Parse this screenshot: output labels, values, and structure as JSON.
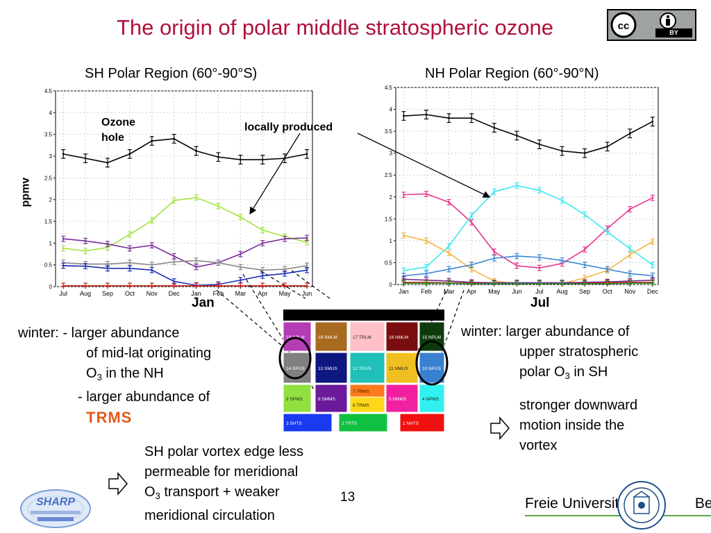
{
  "slide": {
    "title": "The origin of polar middle stratospheric ozone",
    "page_number": "13",
    "cc_badge": {
      "label": "BY"
    }
  },
  "left_panel": {
    "title": "SH Polar Region (60°-90°S)",
    "ylabel": "ppmv",
    "month_highlight": "Jan",
    "annotation_ozone_hole": [
      "Ozone",
      "hole"
    ]
  },
  "right_panel": {
    "title": "NH Polar Region (60°-90°N)",
    "month_highlight": "Jul"
  },
  "shared_annotation": "locally produced",
  "chart_data": [
    {
      "type": "line",
      "title": "SH Polar Region (60°-90°S)",
      "ylabel": "ppmv",
      "ylim": [
        0,
        4.5
      ],
      "yticks": [
        "0",
        "0.5",
        "1",
        "1.5",
        "2",
        "2.5",
        "3",
        "3.5",
        "4",
        "4.5"
      ],
      "grid": true,
      "categories": [
        "Jul",
        "Aug",
        "Sep",
        "Oct",
        "Nov",
        "Dec",
        "Jan",
        "Feb",
        "Mar",
        "Apr",
        "May",
        "Jun"
      ],
      "series": [
        {
          "color": "#000000",
          "values": [
            3.05,
            2.95,
            2.85,
            3.05,
            3.35,
            3.4,
            3.12,
            2.98,
            2.92,
            2.92,
            2.95,
            3.05
          ]
        },
        {
          "color": "#a0e33c",
          "values": [
            0.88,
            0.82,
            0.9,
            1.2,
            1.52,
            1.98,
            2.05,
            1.85,
            1.6,
            1.3,
            1.15,
            1.02
          ]
        },
        {
          "color": "#7b2a9e",
          "values": [
            1.1,
            1.05,
            0.98,
            0.88,
            0.95,
            0.7,
            0.45,
            0.55,
            0.75,
            1.0,
            1.1,
            1.12
          ]
        },
        {
          "color": "#888888",
          "values": [
            0.55,
            0.52,
            0.52,
            0.55,
            0.5,
            0.57,
            0.6,
            0.55,
            0.45,
            0.38,
            0.4,
            0.48
          ]
        },
        {
          "color": "#1a2db8",
          "values": [
            0.48,
            0.47,
            0.42,
            0.42,
            0.38,
            0.12,
            0.03,
            0.05,
            0.15,
            0.25,
            0.3,
            0.38
          ]
        },
        {
          "color": "#d62418",
          "values": [
            0.02,
            0.02,
            0.02,
            0.02,
            0.02,
            0.02,
            0.02,
            0.02,
            0.02,
            0.02,
            0.02,
            0.02
          ]
        }
      ]
    },
    {
      "type": "line",
      "title": "NH Polar Region (60°-90°N)",
      "ylim": [
        0,
        4.5
      ],
      "yticks": [
        "0",
        "0.5",
        "1",
        "1.5",
        "2",
        "2.5",
        "3",
        "3.5",
        "4",
        "4.5"
      ],
      "grid": true,
      "categories": [
        "Jan",
        "Feb",
        "Mar",
        "Apr",
        "May",
        "Jun",
        "Jul",
        "Aug",
        "Sep",
        "Oct",
        "Nov",
        "Dec"
      ],
      "series": [
        {
          "color": "#000000",
          "values": [
            3.85,
            3.88,
            3.8,
            3.8,
            3.58,
            3.4,
            3.2,
            3.05,
            3.0,
            3.15,
            3.45,
            3.72
          ]
        },
        {
          "color": "#e8338c",
          "values": [
            2.05,
            2.07,
            1.88,
            1.42,
            0.75,
            0.43,
            0.38,
            0.48,
            0.8,
            1.28,
            1.72,
            1.98
          ]
        },
        {
          "color": "#3de6ee",
          "values": [
            0.32,
            0.4,
            0.88,
            1.58,
            2.12,
            2.26,
            2.15,
            1.92,
            1.6,
            1.2,
            0.82,
            0.45
          ]
        },
        {
          "color": "#f5b342",
          "values": [
            1.12,
            1.0,
            0.72,
            0.35,
            0.08,
            0.02,
            0.02,
            0.02,
            0.15,
            0.32,
            0.68,
            0.98
          ]
        },
        {
          "color": "#3a86d4",
          "values": [
            0.2,
            0.25,
            0.35,
            0.45,
            0.6,
            0.65,
            0.62,
            0.55,
            0.45,
            0.35,
            0.25,
            0.2
          ]
        },
        {
          "color": "#6a2b8c",
          "values": [
            0.12,
            0.1,
            0.08,
            0.05,
            0.04,
            0.04,
            0.04,
            0.04,
            0.05,
            0.06,
            0.08,
            0.1
          ]
        },
        {
          "color": "#d62418",
          "values": [
            0.05,
            0.05,
            0.04,
            0.03,
            0.02,
            0.02,
            0.02,
            0.02,
            0.03,
            0.04,
            0.05,
            0.05
          ]
        },
        {
          "color": "#2e8b2e",
          "values": [
            0.03,
            0.03,
            0.03,
            0.02,
            0.02,
            0.02,
            0.02,
            0.02,
            0.02,
            0.02,
            0.03,
            0.03
          ]
        }
      ]
    }
  ],
  "region_map": {
    "regions": [
      {
        "label": "19 SPLM",
        "color": "#b43cb4"
      },
      {
        "label": "18 SMLM",
        "color": "#a86a1e"
      },
      {
        "label": "17 TRLM",
        "color": "#ffc0c8"
      },
      {
        "label": "16 NMLM",
        "color": "#7a0e0e"
      },
      {
        "label": "15 NPLM",
        "color": "#0e3b0e"
      },
      {
        "label": "14 SPUS",
        "color": "#808080"
      },
      {
        "label": "13 SMUS",
        "color": "#0e1680"
      },
      {
        "label": "12 TRUS",
        "color": "#20c0b8"
      },
      {
        "label": "11 NMUS",
        "color": "#f0c020"
      },
      {
        "label": "10 NPUS",
        "color": "#3a80d0"
      },
      {
        "label": "9 SPMS",
        "color": "#90e040"
      },
      {
        "label": "8 SMMS",
        "color": "#6a1a9a"
      },
      {
        "label": "7 TRMS",
        "color": "#ff7a1a"
      },
      {
        "label": "6 TRMS",
        "color": "#ffd81a"
      },
      {
        "label": "5 NMMS",
        "color": "#f020a0"
      },
      {
        "label": "4 NPMS",
        "color": "#30f0f0"
      },
      {
        "label": "3 SHTS",
        "color": "#1a3af0"
      },
      {
        "label": "2 TRTS",
        "color": "#10c040"
      },
      {
        "label": "1 NHTS",
        "color": "#f01010"
      }
    ]
  },
  "left_text": {
    "line1": "winter: - larger abundance",
    "line2": "of mid-lat originating",
    "line3a": "O",
    "line3sub": "3",
    "line3b": " in the NH",
    "line4": "- larger abundance of",
    "line5": "TRMS"
  },
  "right_text": {
    "line1": "winter: larger abundance of",
    "line2": "upper stratospheric",
    "line3a": "polar O",
    "line3sub": "3",
    "line3b": " in SH",
    "line4": "stronger downward",
    "line5": "motion inside the",
    "line6": "vortex"
  },
  "bottom_text": {
    "line1": "SH polar vortex edge less",
    "line2": "permeable for meridional",
    "line3a": "O",
    "line3sub": "3",
    "line3b": " transport + weaker",
    "line4": "meridional circulation"
  },
  "logos": {
    "sharp": "SHARP",
    "freie_universitat": "Freie Universität",
    "berlin": "Berlin"
  },
  "colors": {
    "title": "#b0103a",
    "trms": "#e25a1b",
    "fu_line": "#5aa641"
  }
}
